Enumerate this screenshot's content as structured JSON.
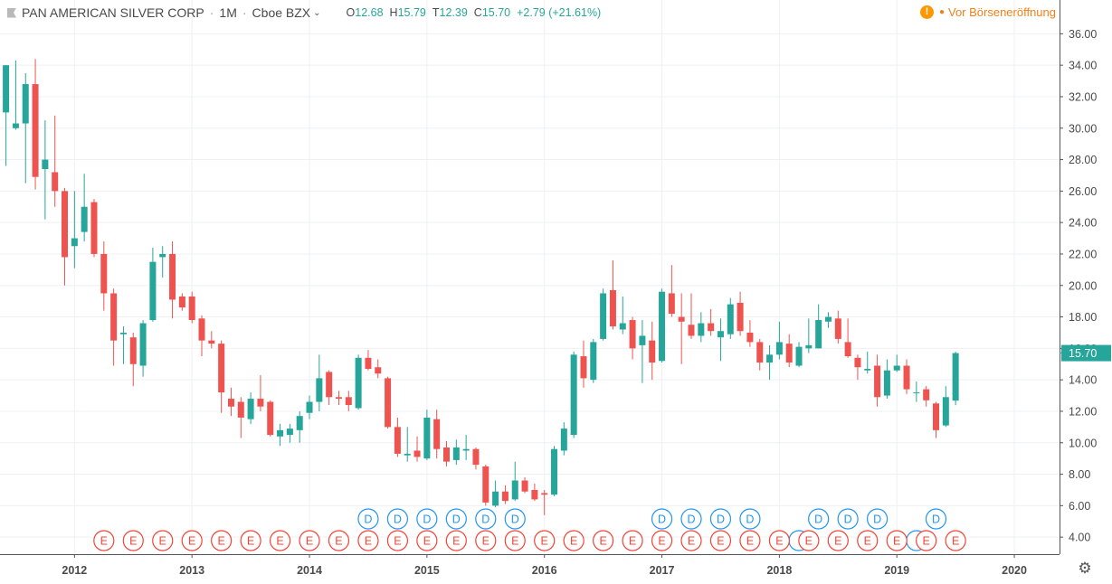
{
  "header": {
    "symbol_name": "PAN AMERICAN SILVER CORP",
    "interval": "1M",
    "exchange": "Cboe BZX",
    "ohlc": [
      {
        "key": "O",
        "value": "12.68"
      },
      {
        "key": "H",
        "value": "15.79"
      },
      {
        "key": "T",
        "value": "12.39"
      },
      {
        "key": "C",
        "value": "15.70"
      }
    ],
    "change": "+2.79 (+21.61%)",
    "market_status": "Vor Börseneröffnung"
  },
  "colors": {
    "up": "#26a69a",
    "down": "#ef5350",
    "grid": "#eef0f3",
    "dividend": "#2196f3",
    "earnings": "#f44336"
  },
  "chart_data": {
    "type": "candlestick",
    "interval": "1M",
    "ylim": [
      2.4,
      37.4
    ],
    "y_ticks": [
      "4.00",
      "6.00",
      "8.00",
      "10.00",
      "12.00",
      "14.00",
      "16.00",
      "18.00",
      "20.00",
      "22.00",
      "24.00",
      "26.00",
      "28.00",
      "30.00",
      "32.00",
      "34.00",
      "36.00"
    ],
    "x_ticks": [
      "2012",
      "2013",
      "2014",
      "2015",
      "2016",
      "2017",
      "2018",
      "2019",
      "2020"
    ],
    "last_price_label": "15.70",
    "candles": [
      {
        "date": "2011-06",
        "o": 31.0,
        "h": 34.0,
        "l": 27.6,
        "c": 34.0
      },
      {
        "date": "2011-07",
        "o": 30.0,
        "h": 34.3,
        "l": 29.9,
        "c": 30.3
      },
      {
        "date": "2011-08",
        "o": 30.3,
        "h": 33.5,
        "l": 26.5,
        "c": 32.8
      },
      {
        "date": "2011-09",
        "o": 32.8,
        "h": 34.4,
        "l": 26.1,
        "c": 26.9
      },
      {
        "date": "2011-10",
        "o": 27.4,
        "h": 30.5,
        "l": 24.2,
        "c": 28.0
      },
      {
        "date": "2011-11",
        "o": 27.2,
        "h": 30.8,
        "l": 25.0,
        "c": 26.0
      },
      {
        "date": "2011-12",
        "o": 26.0,
        "h": 26.2,
        "l": 20.0,
        "c": 21.8
      },
      {
        "date": "2012-01",
        "o": 22.5,
        "h": 26.0,
        "l": 21.1,
        "c": 23.0
      },
      {
        "date": "2012-02",
        "o": 23.4,
        "h": 27.1,
        "l": 22.8,
        "c": 25.0
      },
      {
        "date": "2012-03",
        "o": 25.3,
        "h": 25.5,
        "l": 21.8,
        "c": 22.0
      },
      {
        "date": "2012-04",
        "o": 22.0,
        "h": 22.8,
        "l": 18.4,
        "c": 19.5
      },
      {
        "date": "2012-05",
        "o": 19.5,
        "h": 19.8,
        "l": 14.9,
        "c": 16.5
      },
      {
        "date": "2012-06",
        "o": 16.9,
        "h": 17.4,
        "l": 15.0,
        "c": 17.0
      },
      {
        "date": "2012-07",
        "o": 16.7,
        "h": 17.0,
        "l": 13.6,
        "c": 15.0
      },
      {
        "date": "2012-08",
        "o": 14.9,
        "h": 17.8,
        "l": 14.2,
        "c": 17.6
      },
      {
        "date": "2012-09",
        "o": 17.8,
        "h": 22.4,
        "l": 17.7,
        "c": 21.5
      },
      {
        "date": "2012-10",
        "o": 21.8,
        "h": 22.5,
        "l": 20.5,
        "c": 22.0
      },
      {
        "date": "2012-11",
        "o": 22.0,
        "h": 22.8,
        "l": 17.9,
        "c": 19.1
      },
      {
        "date": "2012-12",
        "o": 19.3,
        "h": 19.5,
        "l": 18.4,
        "c": 18.6
      },
      {
        "date": "2013-01",
        "o": 19.3,
        "h": 19.6,
        "l": 17.6,
        "c": 17.8
      },
      {
        "date": "2013-02",
        "o": 17.9,
        "h": 18.1,
        "l": 15.5,
        "c": 16.5
      },
      {
        "date": "2013-03",
        "o": 16.5,
        "h": 17.1,
        "l": 16.0,
        "c": 16.3
      },
      {
        "date": "2013-04",
        "o": 16.3,
        "h": 16.5,
        "l": 11.9,
        "c": 13.2
      },
      {
        "date": "2013-05",
        "o": 12.8,
        "h": 13.5,
        "l": 11.7,
        "c": 12.3
      },
      {
        "date": "2013-06",
        "o": 12.6,
        "h": 12.9,
        "l": 10.3,
        "c": 11.6
      },
      {
        "date": "2013-07",
        "o": 11.5,
        "h": 13.2,
        "l": 11.2,
        "c": 12.8
      },
      {
        "date": "2013-08",
        "o": 12.8,
        "h": 14.3,
        "l": 12.0,
        "c": 12.3
      },
      {
        "date": "2013-09",
        "o": 12.6,
        "h": 12.7,
        "l": 10.4,
        "c": 10.5
      },
      {
        "date": "2013-10",
        "o": 10.4,
        "h": 11.2,
        "l": 9.8,
        "c": 10.8
      },
      {
        "date": "2013-11",
        "o": 10.5,
        "h": 11.2,
        "l": 10.0,
        "c": 10.9
      },
      {
        "date": "2013-12",
        "o": 10.8,
        "h": 12.0,
        "l": 10.0,
        "c": 11.7
      },
      {
        "date": "2014-01",
        "o": 11.9,
        "h": 13.0,
        "l": 11.5,
        "c": 12.6
      },
      {
        "date": "2014-02",
        "o": 12.6,
        "h": 15.6,
        "l": 12.0,
        "c": 14.1
      },
      {
        "date": "2014-03",
        "o": 14.5,
        "h": 14.6,
        "l": 12.4,
        "c": 12.9
      },
      {
        "date": "2014-04",
        "o": 12.9,
        "h": 13.3,
        "l": 12.4,
        "c": 12.8
      },
      {
        "date": "2014-05",
        "o": 12.9,
        "h": 13.3,
        "l": 12.0,
        "c": 12.4
      },
      {
        "date": "2014-06",
        "o": 12.2,
        "h": 15.6,
        "l": 12.1,
        "c": 15.4
      },
      {
        "date": "2014-07",
        "o": 15.4,
        "h": 15.9,
        "l": 14.6,
        "c": 14.7
      },
      {
        "date": "2014-08",
        "o": 14.8,
        "h": 15.3,
        "l": 14.1,
        "c": 14.4
      },
      {
        "date": "2014-09",
        "o": 14.1,
        "h": 14.2,
        "l": 10.9,
        "c": 11.0
      },
      {
        "date": "2014-10",
        "o": 11.0,
        "h": 11.6,
        "l": 9.1,
        "c": 9.3
      },
      {
        "date": "2014-11",
        "o": 9.2,
        "h": 11.0,
        "l": 8.8,
        "c": 9.3
      },
      {
        "date": "2014-12",
        "o": 9.5,
        "h": 10.4,
        "l": 8.8,
        "c": 9.1
      },
      {
        "date": "2015-01",
        "o": 9.0,
        "h": 12.1,
        "l": 8.9,
        "c": 11.6
      },
      {
        "date": "2015-02",
        "o": 11.5,
        "h": 12.1,
        "l": 9.0,
        "c": 9.6
      },
      {
        "date": "2015-03",
        "o": 9.7,
        "h": 10.1,
        "l": 8.5,
        "c": 8.8
      },
      {
        "date": "2015-04",
        "o": 8.9,
        "h": 10.2,
        "l": 8.6,
        "c": 9.7
      },
      {
        "date": "2015-05",
        "o": 9.5,
        "h": 10.5,
        "l": 8.9,
        "c": 9.6
      },
      {
        "date": "2015-06",
        "o": 9.6,
        "h": 9.7,
        "l": 8.3,
        "c": 8.6
      },
      {
        "date": "2015-07",
        "o": 8.5,
        "h": 8.6,
        "l": 6.0,
        "c": 6.2
      },
      {
        "date": "2015-08",
        "o": 6.0,
        "h": 7.6,
        "l": 5.9,
        "c": 6.9
      },
      {
        "date": "2015-09",
        "o": 6.9,
        "h": 7.3,
        "l": 6.1,
        "c": 6.3
      },
      {
        "date": "2015-10",
        "o": 6.4,
        "h": 8.8,
        "l": 6.3,
        "c": 7.6
      },
      {
        "date": "2015-11",
        "o": 7.6,
        "h": 7.8,
        "l": 6.8,
        "c": 6.9
      },
      {
        "date": "2015-12",
        "o": 7.0,
        "h": 7.4,
        "l": 6.3,
        "c": 6.4
      },
      {
        "date": "2016-01",
        "o": 6.8,
        "h": 7.0,
        "l": 5.4,
        "c": 6.7
      },
      {
        "date": "2016-02",
        "o": 6.7,
        "h": 9.8,
        "l": 6.6,
        "c": 9.6
      },
      {
        "date": "2016-03",
        "o": 9.5,
        "h": 11.3,
        "l": 9.2,
        "c": 10.9
      },
      {
        "date": "2016-04",
        "o": 10.5,
        "h": 15.8,
        "l": 10.3,
        "c": 15.6
      },
      {
        "date": "2016-05",
        "o": 15.5,
        "h": 16.5,
        "l": 13.5,
        "c": 14.1
      },
      {
        "date": "2016-06",
        "o": 14.0,
        "h": 16.6,
        "l": 13.8,
        "c": 16.4
      },
      {
        "date": "2016-07",
        "o": 16.6,
        "h": 19.8,
        "l": 16.5,
        "c": 19.5
      },
      {
        "date": "2016-08",
        "o": 19.7,
        "h": 21.6,
        "l": 17.2,
        "c": 17.4
      },
      {
        "date": "2016-09",
        "o": 17.2,
        "h": 19.3,
        "l": 16.9,
        "c": 17.6
      },
      {
        "date": "2016-10",
        "o": 17.8,
        "h": 18.0,
        "l": 15.3,
        "c": 16.0
      },
      {
        "date": "2016-11",
        "o": 16.2,
        "h": 17.8,
        "l": 13.8,
        "c": 16.8
      },
      {
        "date": "2016-12",
        "o": 16.5,
        "h": 17.7,
        "l": 14.0,
        "c": 15.1
      },
      {
        "date": "2017-01",
        "o": 15.2,
        "h": 19.8,
        "l": 15.1,
        "c": 19.6
      },
      {
        "date": "2017-02",
        "o": 19.5,
        "h": 21.3,
        "l": 18.0,
        "c": 18.2
      },
      {
        "date": "2017-03",
        "o": 18.0,
        "h": 19.5,
        "l": 15.0,
        "c": 17.7
      },
      {
        "date": "2017-04",
        "o": 17.5,
        "h": 19.5,
        "l": 16.6,
        "c": 16.8
      },
      {
        "date": "2017-05",
        "o": 16.8,
        "h": 18.3,
        "l": 16.4,
        "c": 17.6
      },
      {
        "date": "2017-06",
        "o": 17.6,
        "h": 18.5,
        "l": 16.8,
        "c": 17.1
      },
      {
        "date": "2017-07",
        "o": 16.7,
        "h": 17.9,
        "l": 15.2,
        "c": 17.1
      },
      {
        "date": "2017-08",
        "o": 16.9,
        "h": 19.2,
        "l": 16.6,
        "c": 18.8
      },
      {
        "date": "2017-09",
        "o": 18.9,
        "h": 19.6,
        "l": 16.8,
        "c": 17.1
      },
      {
        "date": "2017-10",
        "o": 17.0,
        "h": 17.8,
        "l": 16.1,
        "c": 16.4
      },
      {
        "date": "2017-11",
        "o": 16.4,
        "h": 16.6,
        "l": 14.6,
        "c": 15.1
      },
      {
        "date": "2017-12",
        "o": 15.1,
        "h": 16.2,
        "l": 14.0,
        "c": 15.6
      },
      {
        "date": "2018-01",
        "o": 15.6,
        "h": 17.7,
        "l": 15.3,
        "c": 16.4
      },
      {
        "date": "2018-02",
        "o": 16.3,
        "h": 16.9,
        "l": 14.8,
        "c": 15.1
      },
      {
        "date": "2018-03",
        "o": 14.9,
        "h": 16.4,
        "l": 14.8,
        "c": 16.1
      },
      {
        "date": "2018-04",
        "o": 16.0,
        "h": 17.9,
        "l": 15.7,
        "c": 16.2
      },
      {
        "date": "2018-05",
        "o": 16.0,
        "h": 18.8,
        "l": 16.0,
        "c": 17.8
      },
      {
        "date": "2018-06",
        "o": 17.7,
        "h": 18.3,
        "l": 17.3,
        "c": 18.0
      },
      {
        "date": "2018-07",
        "o": 17.9,
        "h": 18.4,
        "l": 16.3,
        "c": 16.6
      },
      {
        "date": "2018-08",
        "o": 16.4,
        "h": 17.9,
        "l": 15.4,
        "c": 15.5
      },
      {
        "date": "2018-09",
        "o": 15.4,
        "h": 15.6,
        "l": 14.0,
        "c": 14.8
      },
      {
        "date": "2018-10",
        "o": 14.6,
        "h": 15.8,
        "l": 14.4,
        "c": 14.7
      },
      {
        "date": "2018-11",
        "o": 14.9,
        "h": 15.6,
        "l": 12.3,
        "c": 12.9
      },
      {
        "date": "2018-12",
        "o": 13.0,
        "h": 15.3,
        "l": 12.8,
        "c": 14.6
      },
      {
        "date": "2019-01",
        "o": 14.6,
        "h": 15.6,
        "l": 14.5,
        "c": 14.9
      },
      {
        "date": "2019-02",
        "o": 14.9,
        "h": 15.3,
        "l": 13.1,
        "c": 13.4
      },
      {
        "date": "2019-03",
        "o": 13.2,
        "h": 13.9,
        "l": 12.6,
        "c": 13.2
      },
      {
        "date": "2019-04",
        "o": 13.4,
        "h": 13.6,
        "l": 12.3,
        "c": 12.7
      },
      {
        "date": "2019-05",
        "o": 12.5,
        "h": 12.6,
        "l": 10.3,
        "c": 10.8
      },
      {
        "date": "2019-06",
        "o": 11.1,
        "h": 13.6,
        "l": 11.0,
        "c": 12.9
      },
      {
        "date": "2019-07",
        "o": 12.68,
        "h": 15.79,
        "l": 12.39,
        "c": 15.7
      }
    ],
    "dividend_markers": {
      "label": "D",
      "dates": [
        "2014-07",
        "2014-10",
        "2015-01",
        "2015-04",
        "2015-07",
        "2015-10",
        "2017-01",
        "2017-04",
        "2017-07",
        "2017-10",
        "2018-05",
        "2018-08",
        "2018-11",
        "2019-05"
      ]
    },
    "earnings_markers": {
      "label": "E",
      "dates": [
        "2012-04",
        "2012-07",
        "2012-10",
        "2013-01",
        "2013-04",
        "2013-07",
        "2013-10",
        "2014-01",
        "2014-04",
        "2014-07",
        "2014-10",
        "2015-01",
        "2015-04",
        "2015-07",
        "2015-10",
        "2016-01",
        "2016-04",
        "2016-07",
        "2016-10",
        "2017-01",
        "2017-04",
        "2017-07",
        "2017-10",
        "2018-01",
        "2018-04",
        "2018-07",
        "2018-10",
        "2019-01",
        "2019-04",
        "2019-07"
      ]
    },
    "extra_dividend_circles": [
      "2018-03",
      "2019-03"
    ]
  }
}
